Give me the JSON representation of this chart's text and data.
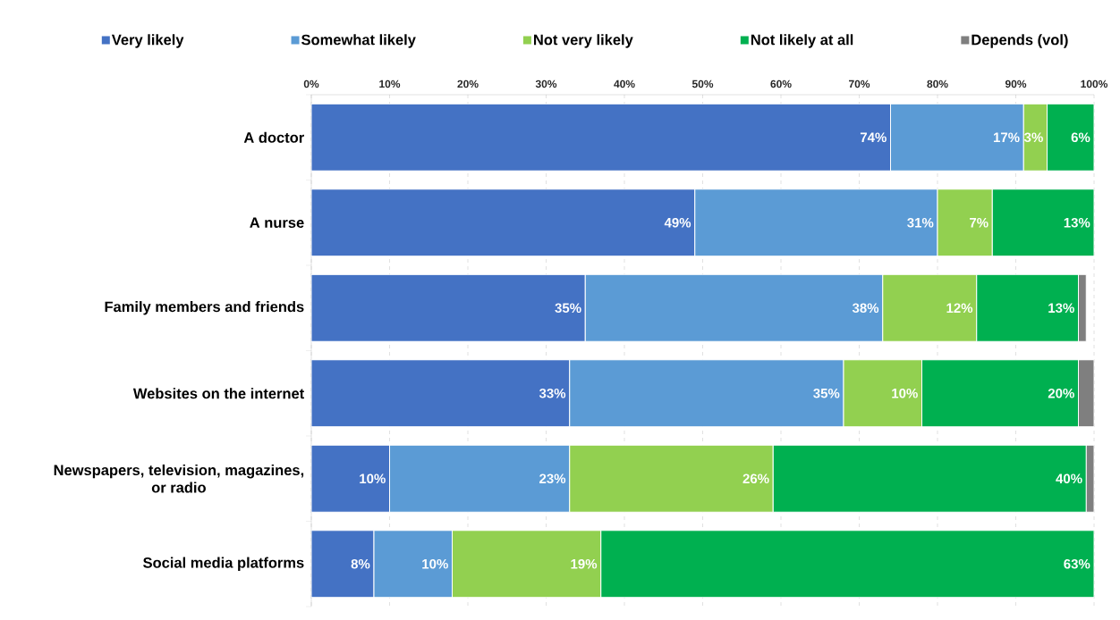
{
  "chart_data": {
    "type": "bar",
    "orientation": "horizontal",
    "stacked": true,
    "categories": [
      "A doctor",
      "A nurse",
      "Family members and friends",
      "Websites on the internet",
      "Newspapers, television, magazines, or radio",
      "Social media platforms"
    ],
    "series": [
      {
        "name": "Very likely",
        "color": "#4472c4",
        "values": [
          74,
          49,
          35,
          33,
          10,
          8
        ],
        "value_labels": [
          "74%",
          "49%",
          "35%",
          "33%",
          "10%",
          "8%"
        ]
      },
      {
        "name": "Somewhat likely",
        "color": "#5b9bd5",
        "values": [
          17,
          31,
          38,
          35,
          23,
          10
        ],
        "value_labels": [
          "17%",
          "31%",
          "38%",
          "35%",
          "23%",
          "10%"
        ]
      },
      {
        "name": "Not very likely",
        "color": "#92d050",
        "values": [
          3,
          7,
          12,
          10,
          26,
          19
        ],
        "value_labels": [
          "3%",
          "7%",
          "12%",
          "10%",
          "26%",
          "19%"
        ]
      },
      {
        "name": "Not likely at all",
        "color": "#00b050",
        "values": [
          6,
          13,
          13,
          20,
          40,
          63
        ],
        "value_labels": [
          "6%",
          "13%",
          "13%",
          "20%",
          "40%",
          "63%"
        ]
      },
      {
        "name": "Depends (vol)",
        "color": "#7f7f7f",
        "values": [
          null,
          null,
          1,
          2,
          1,
          null
        ]
      }
    ],
    "xlim": [
      0,
      100
    ],
    "xticks": [
      {
        "value": 0,
        "label": "0%"
      },
      {
        "value": 10,
        "label": "10%"
      },
      {
        "value": 20,
        "label": "20%"
      },
      {
        "value": 30,
        "label": "30%"
      },
      {
        "value": 40,
        "label": "40%"
      },
      {
        "value": 50,
        "label": "50%"
      },
      {
        "value": 60,
        "label": "60%"
      },
      {
        "value": 70,
        "label": "70%"
      },
      {
        "value": 80,
        "label": "80%"
      },
      {
        "value": 90,
        "label": "90%"
      },
      {
        "value": 100,
        "label": "100%"
      }
    ],
    "grid": "x",
    "legend": "top"
  }
}
